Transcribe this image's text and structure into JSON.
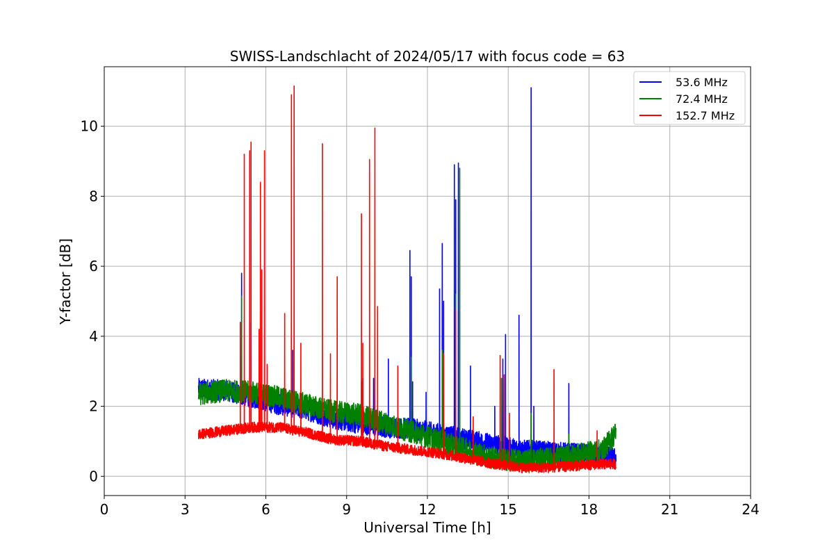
{
  "chart_data": {
    "type": "line",
    "title": "SWISS-Landschlacht of 2024/05/17 with focus code = 63",
    "xlabel": "Universal Time [h]",
    "ylabel": "Y-factor [dB]",
    "xlim": [
      0,
      24
    ],
    "ylim": [
      -0.55,
      11.7
    ],
    "xticks": [
      0,
      3,
      6,
      9,
      12,
      15,
      18,
      21,
      24
    ],
    "yticks": [
      0,
      2,
      4,
      6,
      8,
      10
    ],
    "grid": true,
    "legend_position": "top-right",
    "series": [
      {
        "name": "  53.6 MHz",
        "color": "#0000ff",
        "baseline": [
          [
            3.5,
            2.5
          ],
          [
            4.5,
            2.45
          ],
          [
            5.5,
            2.25
          ],
          [
            6.5,
            2.05
          ],
          [
            7.5,
            1.9
          ],
          [
            8.5,
            1.65
          ],
          [
            9.5,
            1.5
          ],
          [
            10.5,
            1.4
          ],
          [
            11.5,
            1.35
          ],
          [
            12.5,
            1.2
          ],
          [
            13.5,
            1.05
          ],
          [
            14.5,
            0.9
          ],
          [
            15.5,
            0.75
          ],
          [
            16.5,
            0.7
          ],
          [
            17.5,
            0.65
          ],
          [
            18.5,
            0.6
          ],
          [
            19.0,
            0.5
          ]
        ],
        "noise": 0.3,
        "peaks": [
          [
            5.1,
            5.8
          ],
          [
            5.45,
            4.4
          ],
          [
            5.8,
            4.7
          ],
          [
            7.0,
            3.6
          ],
          [
            9.6,
            2.8
          ],
          [
            10.0,
            2.8
          ],
          [
            10.55,
            3.35
          ],
          [
            11.35,
            6.45
          ],
          [
            11.4,
            5.7
          ],
          [
            11.45,
            2.7
          ],
          [
            11.95,
            2.4
          ],
          [
            12.45,
            5.35
          ],
          [
            12.55,
            6.65
          ],
          [
            12.6,
            5.0
          ],
          [
            13.0,
            8.9
          ],
          [
            13.05,
            7.9
          ],
          [
            13.15,
            8.95
          ],
          [
            13.6,
            3.15
          ],
          [
            14.5,
            2.0
          ],
          [
            14.8,
            3.35
          ],
          [
            14.9,
            4.05
          ],
          [
            15.4,
            4.6
          ],
          [
            15.85,
            11.1
          ],
          [
            15.95,
            2.0
          ],
          [
            17.25,
            2.65
          ]
        ]
      },
      {
        "name": "  72.4 MHz",
        "color": "#008000",
        "baseline": [
          [
            3.5,
            2.35
          ],
          [
            4.5,
            2.45
          ],
          [
            5.5,
            2.4
          ],
          [
            6.5,
            2.25
          ],
          [
            7.5,
            2.05
          ],
          [
            8.5,
            1.85
          ],
          [
            9.5,
            1.75
          ],
          [
            10.5,
            1.5
          ],
          [
            11.5,
            1.25
          ],
          [
            12.5,
            1.0
          ],
          [
            13.5,
            0.75
          ],
          [
            14.5,
            0.5
          ],
          [
            15.5,
            0.45
          ],
          [
            16.5,
            0.5
          ],
          [
            17.5,
            0.6
          ],
          [
            18.5,
            0.75
          ],
          [
            19.0,
            1.25
          ]
        ],
        "noise": 0.32,
        "peaks": [
          [
            5.1,
            5.15
          ],
          [
            9.55,
            2.7
          ],
          [
            11.4,
            3.4
          ],
          [
            12.55,
            3.6
          ],
          [
            13.05,
            5.2
          ],
          [
            13.2,
            8.8
          ],
          [
            14.75,
            2.8
          ],
          [
            15.85,
            1.8
          ],
          [
            17.25,
            1.2
          ]
        ]
      },
      {
        "name": "152.7 MHz",
        "color": "#ff0000",
        "baseline": [
          [
            3.5,
            1.2
          ],
          [
            4.5,
            1.3
          ],
          [
            5.5,
            1.4
          ],
          [
            6.5,
            1.4
          ],
          [
            7.5,
            1.25
          ],
          [
            8.5,
            1.05
          ],
          [
            9.5,
            1.0
          ],
          [
            10.5,
            0.85
          ],
          [
            11.5,
            0.75
          ],
          [
            12.5,
            0.65
          ],
          [
            13.5,
            0.5
          ],
          [
            14.5,
            0.35
          ],
          [
            15.5,
            0.25
          ],
          [
            16.5,
            0.25
          ],
          [
            17.5,
            0.3
          ],
          [
            18.5,
            0.35
          ],
          [
            19.0,
            0.35
          ]
        ],
        "noise": 0.15,
        "peaks": [
          [
            5.05,
            4.4
          ],
          [
            5.2,
            9.2
          ],
          [
            5.4,
            9.3
          ],
          [
            5.45,
            9.55
          ],
          [
            5.75,
            4.2
          ],
          [
            5.8,
            8.4
          ],
          [
            5.85,
            5.9
          ],
          [
            5.95,
            9.3
          ],
          [
            6.05,
            3.2
          ],
          [
            6.7,
            4.65
          ],
          [
            6.95,
            10.9
          ],
          [
            7.05,
            11.15
          ],
          [
            7.3,
            3.8
          ],
          [
            8.1,
            9.5
          ],
          [
            8.4,
            3.5
          ],
          [
            8.65,
            5.7
          ],
          [
            9.55,
            7.5
          ],
          [
            9.6,
            3.8
          ],
          [
            9.85,
            9.05
          ],
          [
            10.05,
            9.95
          ],
          [
            10.15,
            4.85
          ],
          [
            10.9,
            3.15
          ],
          [
            12.6,
            3.5
          ],
          [
            13.05,
            4.75
          ],
          [
            13.7,
            1.7
          ],
          [
            14.7,
            3.45
          ],
          [
            14.85,
            2.9
          ],
          [
            15.05,
            1.8
          ],
          [
            16.7,
            3.05
          ],
          [
            18.3,
            1.3
          ]
        ]
      }
    ]
  }
}
